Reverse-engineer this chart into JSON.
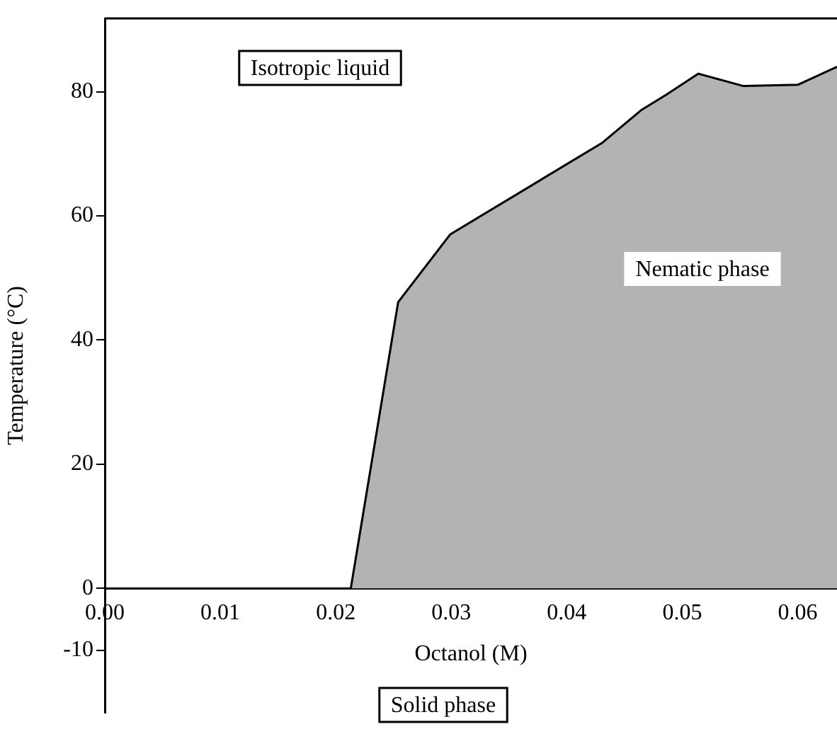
{
  "chart_data": {
    "type": "area",
    "xlabel": "Octanol (M)",
    "ylabel": "Temperature (°C)",
    "x": [
      0.0213,
      0.0254,
      0.0299,
      0.0431,
      0.0465,
      0.0486,
      0.0514,
      0.0553,
      0.06,
      0.0634
    ],
    "series": [
      {
        "color": "#b3b3b3",
        "values": [
          0,
          46.1,
          57,
          71.8,
          77.1,
          79.5,
          82.9,
          80.9,
          81.1,
          84
        ]
      }
    ],
    "xlim": [
      0,
      0.0634
    ],
    "ylim": [
      -20,
      91.8
    ],
    "xticks": [
      {
        "value": 0,
        "label": "0.00"
      },
      {
        "value": 0.01,
        "label": "0.01"
      },
      {
        "value": 0.02,
        "label": "0.02"
      },
      {
        "value": 0.03,
        "label": "0.03"
      },
      {
        "value": 0.04,
        "label": "0.04"
      },
      {
        "value": 0.05,
        "label": "0.05"
      },
      {
        "value": 0.06,
        "label": "0.06"
      }
    ],
    "yticks": [
      -10,
      0,
      20,
      40,
      60,
      80
    ],
    "annotations": [
      "Isotropic liquid",
      "Nematic phase",
      "Solid phase"
    ]
  }
}
